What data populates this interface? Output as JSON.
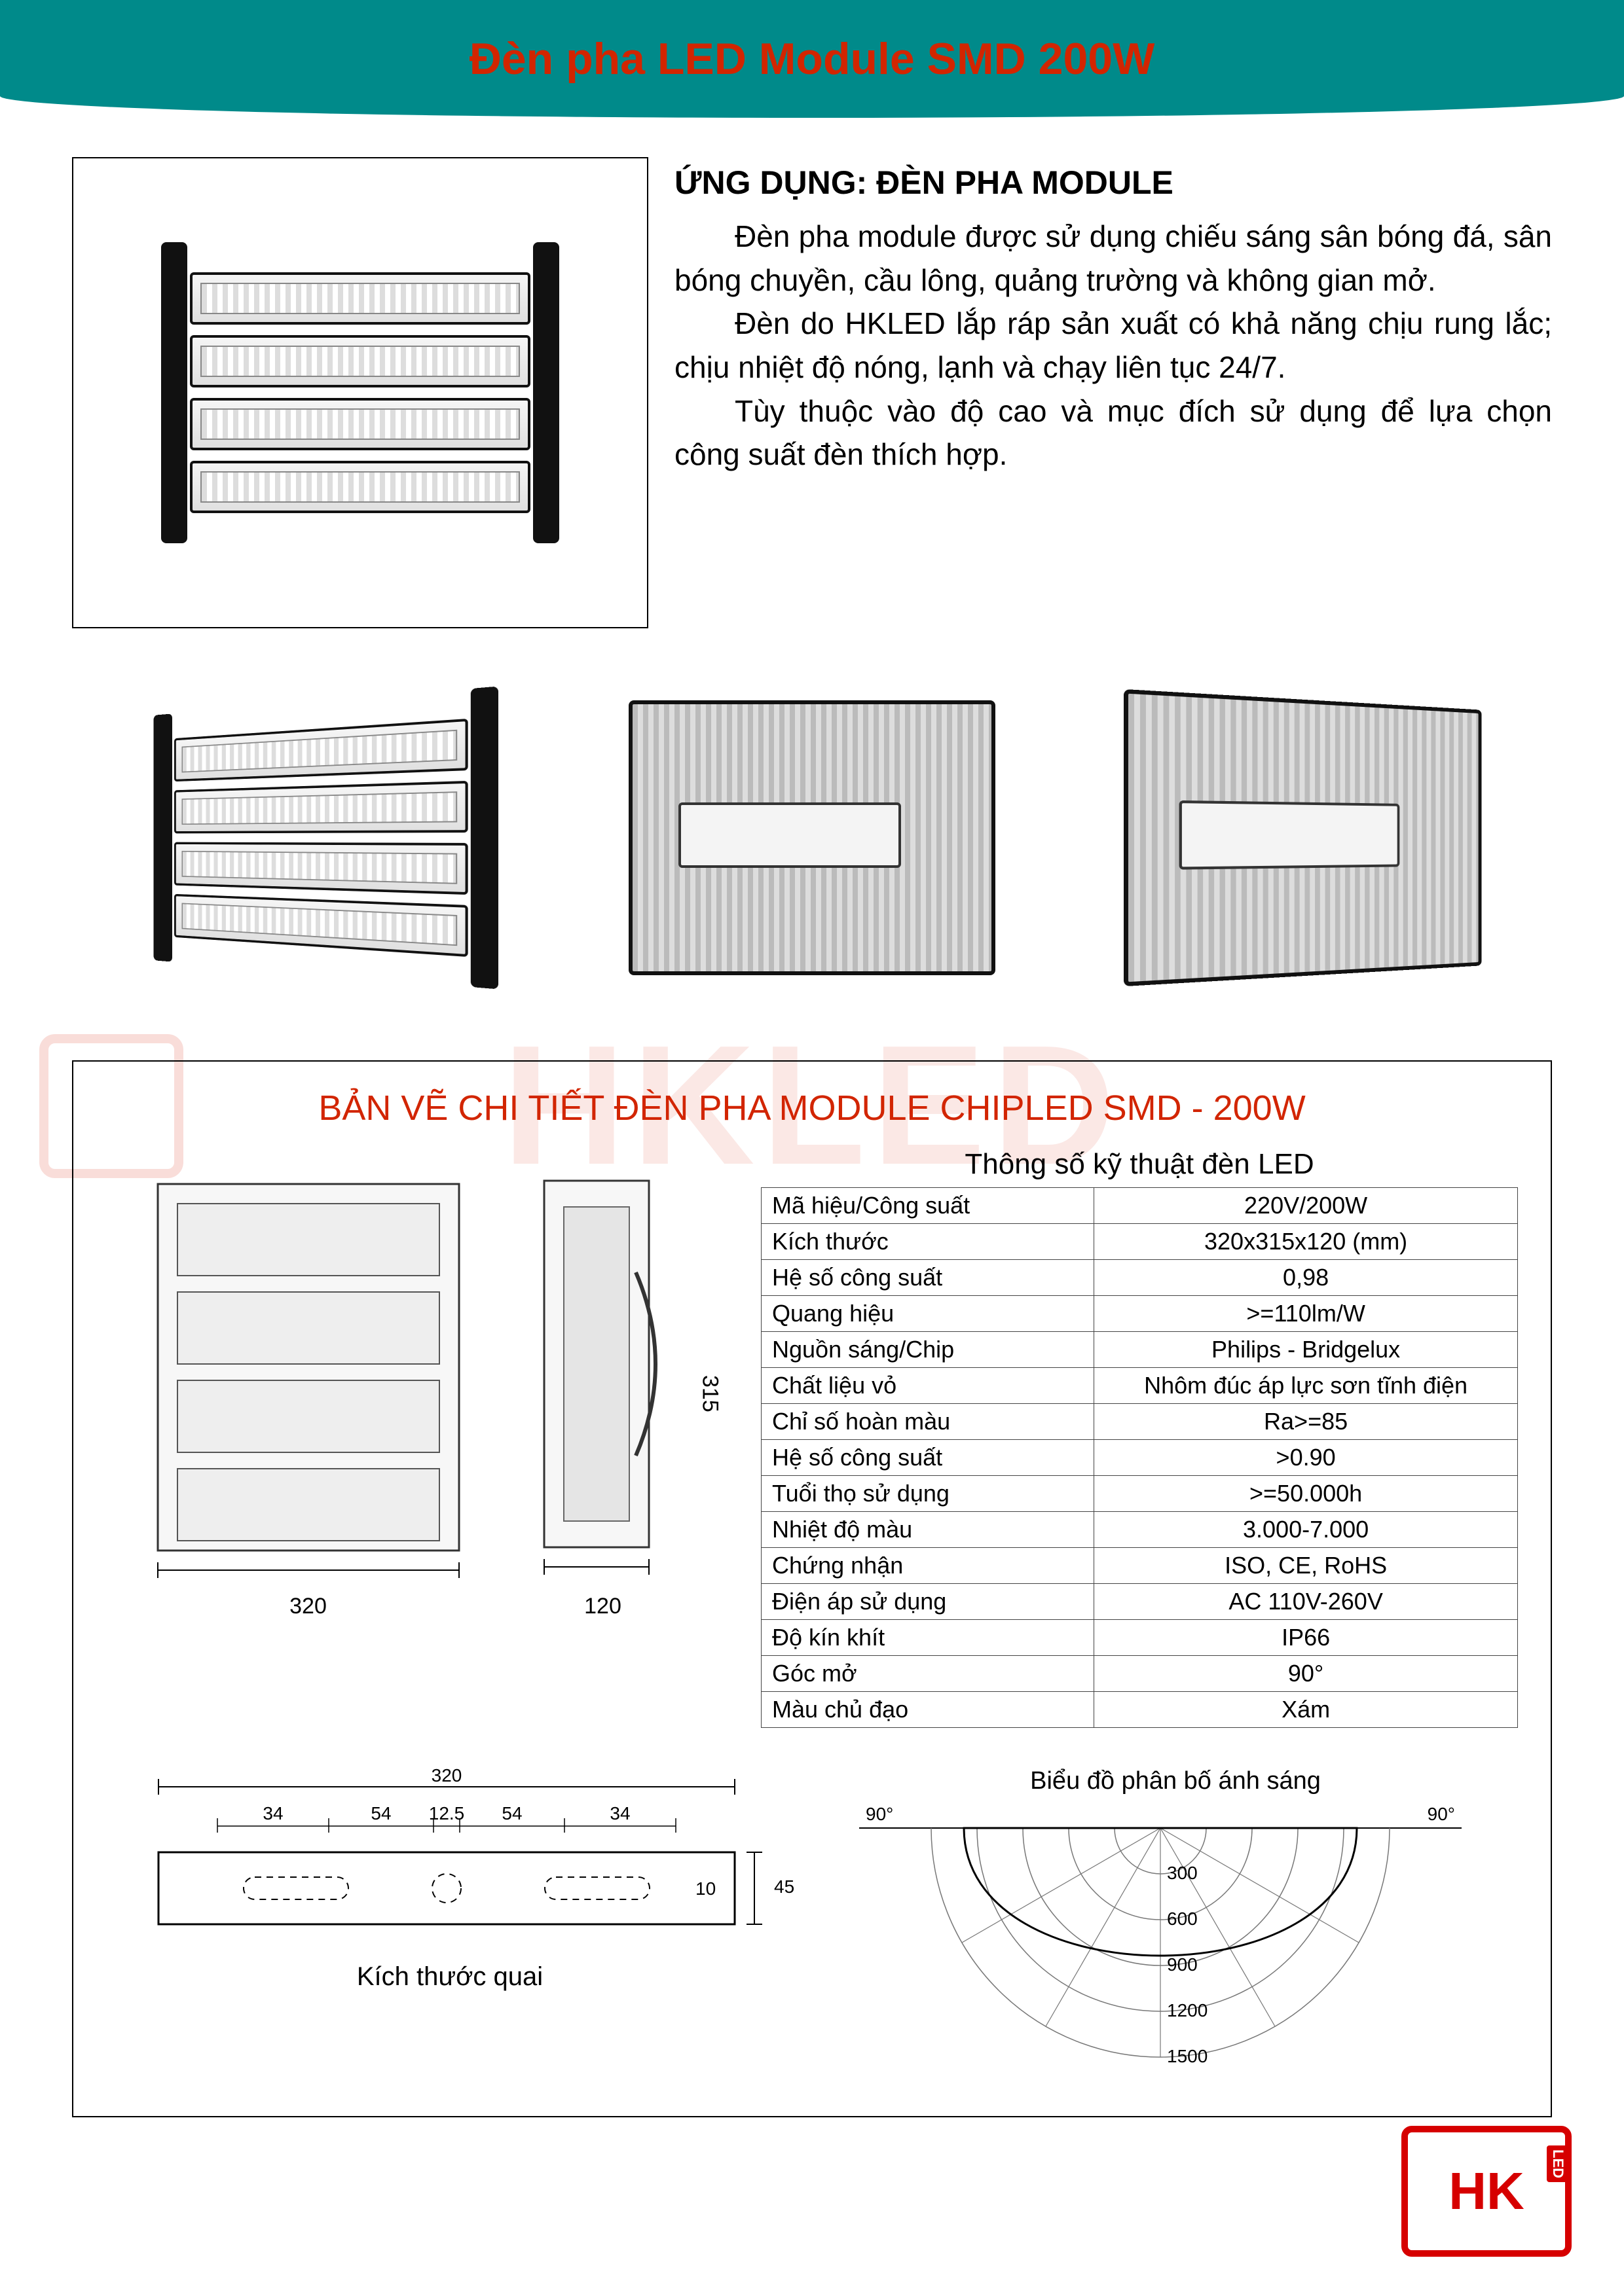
{
  "header": {
    "title": "Đèn pha LED Module SMD 200W"
  },
  "watermark": {
    "text": "HKLED"
  },
  "description": {
    "title": "ỨNG DỤNG: ĐÈN PHA MODULE",
    "p1": "Đèn pha module được sử dụng chiếu sáng sân bóng đá, sân bóng chuyền, cầu lông, quảng trường và không gian mở.",
    "p2": "Đèn do HKLED lắp ráp sản xuất có khả năng chịu rung lắc; chịu nhiệt độ nóng, lạnh và chạy liên tục 24/7.",
    "p3": "Tùy thuộc vào độ cao và mục đích sử dụng để lựa chọn công suất đèn thích hợp."
  },
  "spec_section": {
    "heading": "BẢN VẼ CHI TIẾT ĐÈN PHA MODULE CHIPLED SMD - 200W",
    "table_title": "Thông số kỹ thuật đèn LED",
    "rows": [
      {
        "label": "Mã hiệu/Công suất",
        "value": "220V/200W"
      },
      {
        "label": "Kích thước",
        "value": "320x315x120 (mm)"
      },
      {
        "label": "Hệ số công suất",
        "value": "0,98"
      },
      {
        "label": "Quang hiệu",
        "value": ">=110lm/W"
      },
      {
        "label": "Nguồn sáng/Chip",
        "value": "Philips - Bridgelux"
      },
      {
        "label": "Chất liệu vỏ",
        "value": "Nhôm đúc áp lực sơn tĩnh điện"
      },
      {
        "label": "Chỉ số hoàn màu",
        "value": "Ra>=85"
      },
      {
        "label": "Hệ số công suất",
        "value": ">0.90"
      },
      {
        "label": "Tuổi thọ sử dụng",
        "value": ">=50.000h"
      },
      {
        "label": "Nhiệt độ màu",
        "value": "3.000-7.000"
      },
      {
        "label": "Chứng nhận",
        "value": "ISO, CE, RoHS"
      },
      {
        "label": "Điện áp sử dụng",
        "value": "AC 110V-260V"
      },
      {
        "label": "Độ kín khít",
        "value": "IP66"
      },
      {
        "label": "Góc mở",
        "value": "90°"
      },
      {
        "label": "Màu chủ đạo",
        "value": "Xám"
      }
    ]
  },
  "drawings": {
    "front": {
      "width_label": "320",
      "height_label": "315"
    },
    "side": {
      "width_label": "120"
    },
    "handle": {
      "title": "Kích thước quai",
      "overall": "320",
      "dims": [
        "34",
        "54",
        "12.5",
        "54",
        "34"
      ],
      "height": "45",
      "slot": "10"
    },
    "polar": {
      "title": "Biểu đồ phân bố ánh sáng",
      "left_angle": "90°",
      "right_angle": "90°",
      "rings": [
        "300",
        "600",
        "900",
        "1200",
        "1500"
      ]
    }
  },
  "logo": {
    "text": "HK",
    "tag": "LED"
  },
  "colors": {
    "header_bg": "#008a8a",
    "accent_red": "#d22500",
    "logo_red": "#d60000",
    "border": "#000000"
  }
}
